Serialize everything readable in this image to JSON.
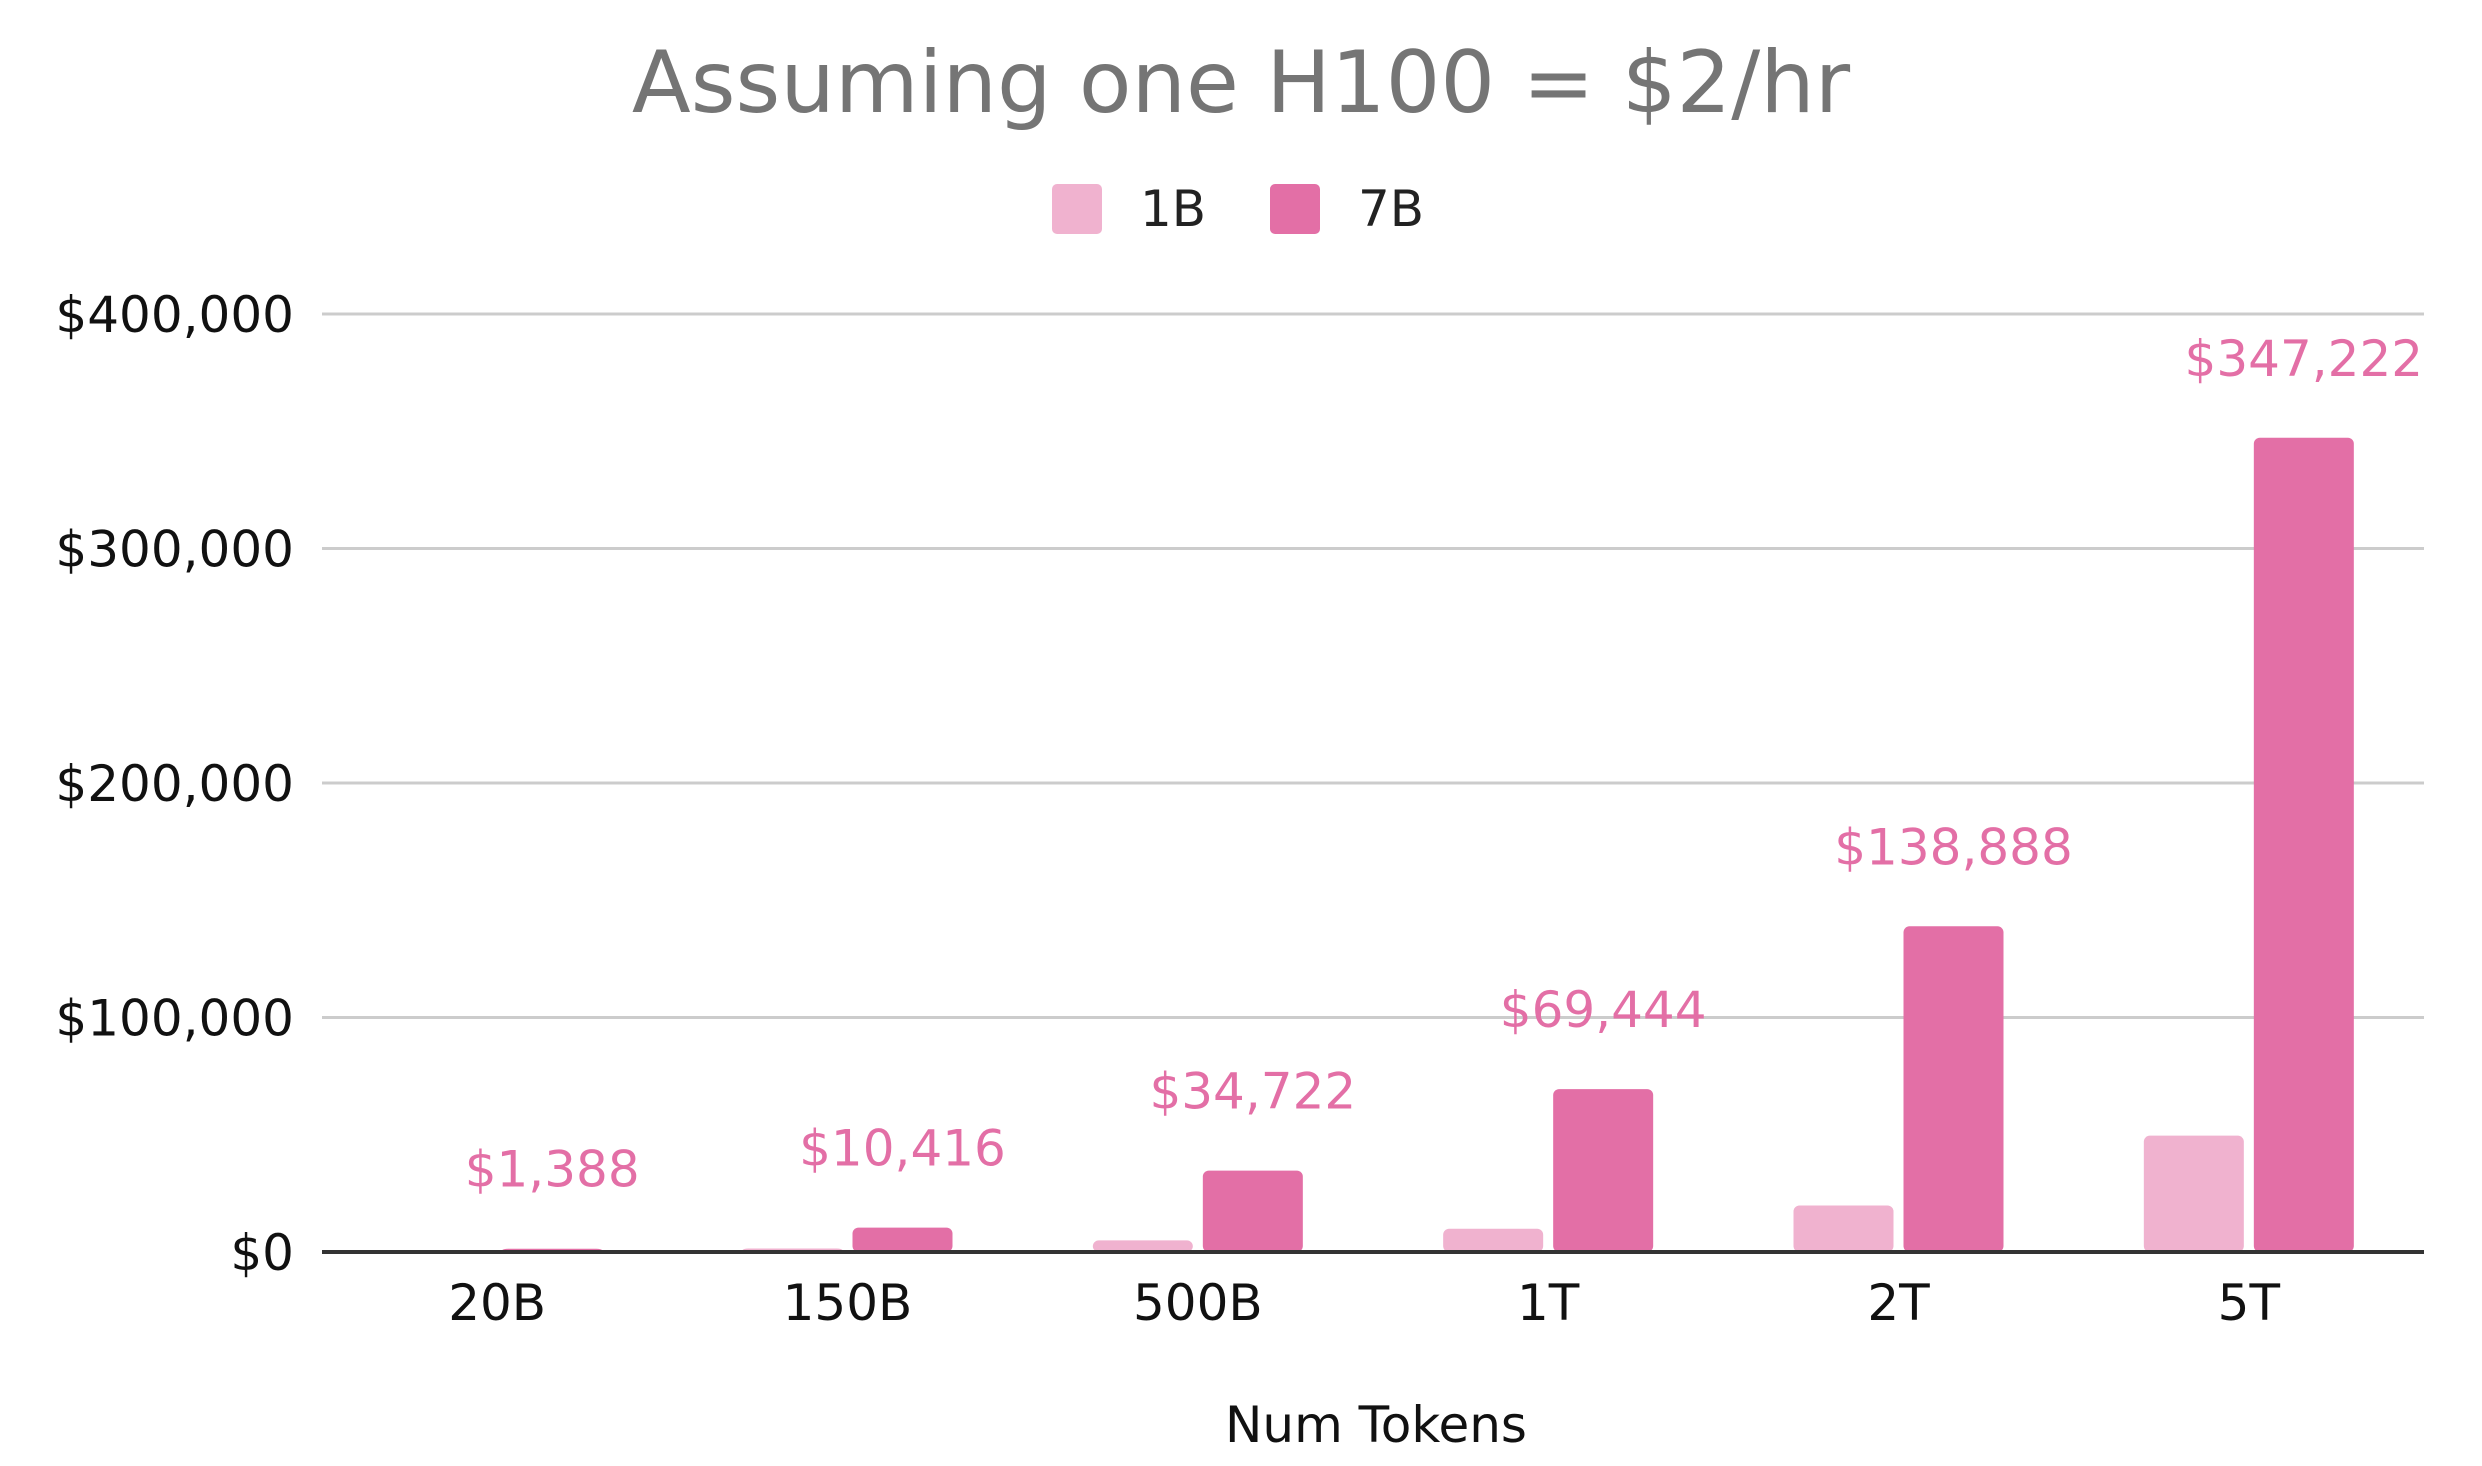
{
  "chart_data": {
    "type": "bar",
    "title": "Assuming one H100 = $2/hr",
    "xlabel": "Num Tokens",
    "ylabel": "",
    "categories": [
      "20B",
      "150B",
      "500B",
      "1T",
      "2T",
      "5T"
    ],
    "series": [
      {
        "name": "1B",
        "color": "#f0b2cf",
        "values": [
          198,
          1488,
          4960,
          9920,
          19840,
          49603
        ]
      },
      {
        "name": "7B",
        "color": "#e36fa6",
        "values": [
          1388,
          10416,
          34722,
          69444,
          138888,
          347222
        ]
      }
    ],
    "data_labels": {
      "series": "7B",
      "text": [
        "$1,388",
        "$10,416",
        "$34,722",
        "$69,444",
        "$138,888",
        "$347,222"
      ],
      "color": "#e36fa6"
    },
    "y_ticks": [
      {
        "value": 0,
        "label": "$0"
      },
      {
        "value": 100000,
        "label": "$100,000"
      },
      {
        "value": 200000,
        "label": "$200,000"
      },
      {
        "value": 300000,
        "label": "$300,000"
      },
      {
        "value": 400000,
        "label": "$400,000"
      }
    ],
    "ylim": [
      0,
      400000
    ],
    "grid": true,
    "legend_position": "top-center"
  }
}
